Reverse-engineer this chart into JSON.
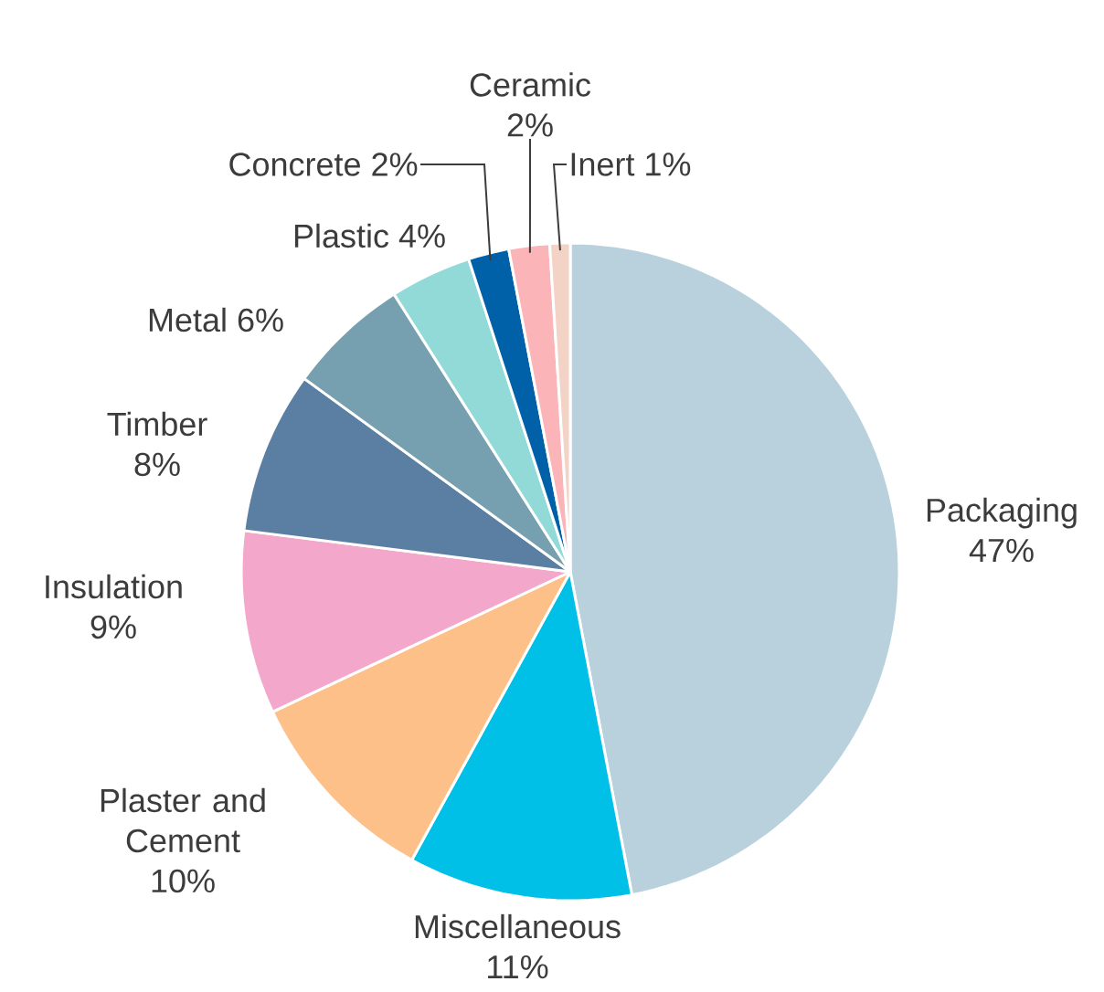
{
  "chart_data": {
    "type": "pie",
    "categories": [
      "Packaging",
      "Miscellaneous",
      "Plaster and Cement",
      "Insulation",
      "Timber",
      "Metal",
      "Plastic",
      "Concrete",
      "Ceramic",
      "Inert"
    ],
    "values": [
      47,
      11,
      10,
      9,
      8,
      6,
      4,
      2,
      2,
      1
    ],
    "value_labels": [
      "47%",
      "11%",
      "10%",
      "9%",
      "8%",
      "6%",
      "4%",
      "2%",
      "2%",
      "1%"
    ],
    "colors": [
      "#b9d1dc",
      "#00c0e8",
      "#fec089",
      "#f2a7cb",
      "#5a7fa3",
      "#76a0af",
      "#92dad8",
      "#0060a8",
      "#fbb4b8",
      "#f2d3c6"
    ]
  }
}
